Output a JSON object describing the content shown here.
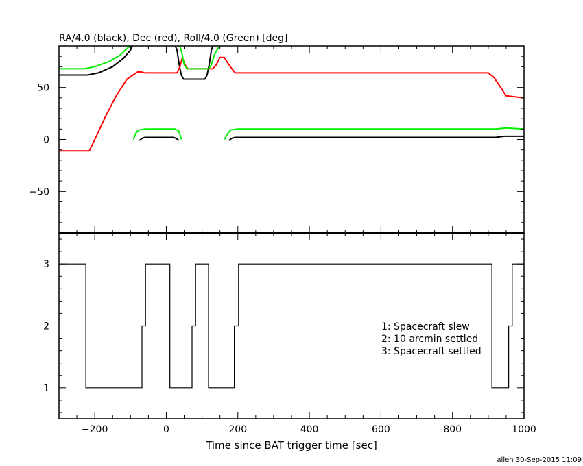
{
  "chart_data": [
    {
      "type": "line",
      "title": "RA/4.0 (black), Dec (red), Roll/4.0 (Green) [deg]",
      "xlim": [
        -300,
        1000
      ],
      "ylim": [
        -90,
        90
      ],
      "yticks": [
        -50,
        0,
        50
      ],
      "series": [
        {
          "color": "#000000",
          "segments": [
            [
              [
                -300,
                62
              ],
              [
                -220,
                62
              ],
              [
                -190,
                64
              ],
              [
                -150,
                70
              ],
              [
                -120,
                78
              ],
              [
                -100,
                86
              ],
              [
                -95,
                90
              ]
            ],
            [
              [
                25,
                90
              ],
              [
                30,
                86
              ],
              [
                36,
                72
              ],
              [
                42,
                62
              ],
              [
                48,
                58
              ],
              [
                108,
                58
              ],
              [
                114,
                62
              ],
              [
                120,
                72
              ],
              [
                126,
                86
              ],
              [
                130,
                90
              ]
            ],
            [
              [
                -75,
                -1
              ],
              [
                -68,
                1
              ],
              [
                -60,
                2
              ],
              [
                -30,
                2
              ],
              [
                20,
                2
              ],
              [
                28,
                1
              ],
              [
                35,
                -1
              ]
            ],
            [
              [
                175,
                -1
              ],
              [
                182,
                1
              ],
              [
                192,
                2
              ],
              [
                350,
                2
              ],
              [
                700,
                2
              ],
              [
                905,
                2
              ],
              [
                920,
                2
              ],
              [
                945,
                3
              ],
              [
                1000,
                3
              ]
            ]
          ]
        },
        {
          "color": "#ff0000",
          "segments": [
            [
              [
                -300,
                -11
              ],
              [
                -215,
                -11
              ],
              [
                -200,
                0
              ],
              [
                -170,
                22
              ],
              [
                -140,
                42
              ],
              [
                -110,
                58
              ],
              [
                -80,
                65
              ],
              [
                -70,
                65
              ],
              [
                -60,
                64
              ],
              [
                30,
                64
              ],
              [
                38,
                70
              ],
              [
                45,
                79
              ],
              [
                52,
                72
              ],
              [
                60,
                68
              ],
              [
                130,
                68
              ],
              [
                140,
                72
              ],
              [
                150,
                79
              ],
              [
                162,
                79
              ],
              [
                175,
                72
              ],
              [
                192,
                64
              ],
              [
                350,
                64
              ],
              [
                900,
                64
              ],
              [
                915,
                60
              ],
              [
                935,
                50
              ],
              [
                950,
                42
              ],
              [
                975,
                41
              ],
              [
                1000,
                40
              ]
            ]
          ]
        },
        {
          "color": "#00ee00",
          "segments": [
            [
              [
                -300,
                68
              ],
              [
                -230,
                68
              ],
              [
                -200,
                70
              ],
              [
                -160,
                75
              ],
              [
                -130,
                81
              ],
              [
                -108,
                88
              ],
              [
                -100,
                90
              ]
            ],
            [
              [
                38,
                90
              ],
              [
                43,
                84
              ],
              [
                50,
                72
              ],
              [
                58,
                68
              ],
              [
                118,
                68
              ],
              [
                126,
                72
              ],
              [
                135,
                82
              ],
              [
                145,
                88
              ],
              [
                150,
                90
              ]
            ],
            [
              [
                -92,
                0
              ],
              [
                -85,
                6
              ],
              [
                -78,
                9
              ],
              [
                -60,
                10
              ],
              [
                25,
                10
              ],
              [
                35,
                8
              ],
              [
                42,
                0
              ]
            ],
            [
              [
                163,
                0
              ],
              [
                170,
                5
              ],
              [
                180,
                9
              ],
              [
                200,
                10
              ],
              [
                350,
                10
              ],
              [
                700,
                10
              ],
              [
                920,
                10
              ],
              [
                950,
                11
              ],
              [
                1000,
                10
              ]
            ]
          ]
        }
      ]
    },
    {
      "type": "line",
      "xlabel": "Time since BAT trigger time [sec]",
      "xlim": [
        -300,
        1000
      ],
      "ylim": [
        0.5,
        3.5
      ],
      "xticks": [
        -200,
        0,
        200,
        400,
        600,
        800,
        1000
      ],
      "yticks": [
        1,
        2,
        3
      ],
      "legend": [
        "1: Spacecraft slew",
        "2: 10 arcmin settled",
        "3: Spacecraft settled"
      ],
      "legend_position": "right",
      "series": [
        {
          "color": "#000000",
          "x": [
            -300,
            -225,
            -225,
            -68,
            -68,
            -58,
            -58,
            10,
            10,
            72,
            72,
            82,
            82,
            118,
            118,
            190,
            190,
            202,
            202,
            910,
            910,
            957,
            957,
            967,
            967,
            1000
          ],
          "y": [
            3,
            3,
            1,
            1,
            2,
            2,
            3,
            3,
            1,
            1,
            2,
            2,
            3,
            3,
            1,
            1,
            2,
            2,
            3,
            3,
            1,
            1,
            2,
            2,
            3,
            3
          ]
        }
      ]
    }
  ],
  "footer": "allen 30-Sep-2015 11:09"
}
